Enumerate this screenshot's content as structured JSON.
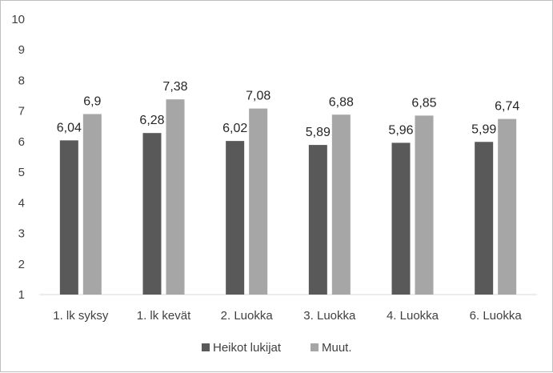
{
  "chart_data": {
    "type": "bar",
    "categories": [
      "1. lk syksy",
      "1. lk kevät",
      "2. Luokka",
      "3. Luokka",
      "4. Luokka",
      "6. Luokka"
    ],
    "series": [
      {
        "name": "Heikot lukijat",
        "color": "#595959",
        "values": [
          6.04,
          6.28,
          6.02,
          5.89,
          5.96,
          5.99
        ],
        "labels": [
          "6,04",
          "6,28",
          "6,02",
          "5,89",
          "5,96",
          "5,99"
        ]
      },
      {
        "name": "Muut.",
        "color": "#a6a6a6",
        "values": [
          6.9,
          7.38,
          7.08,
          6.88,
          6.85,
          6.74
        ],
        "labels": [
          "6,9",
          "7,38",
          "7,08",
          "6,88",
          "6,85",
          "6,74"
        ]
      }
    ],
    "ylim": [
      1,
      10
    ],
    "yticks": [
      1,
      2,
      3,
      4,
      5,
      6,
      7,
      8,
      9,
      10
    ],
    "grid": false,
    "legend_position": "bottom"
  }
}
